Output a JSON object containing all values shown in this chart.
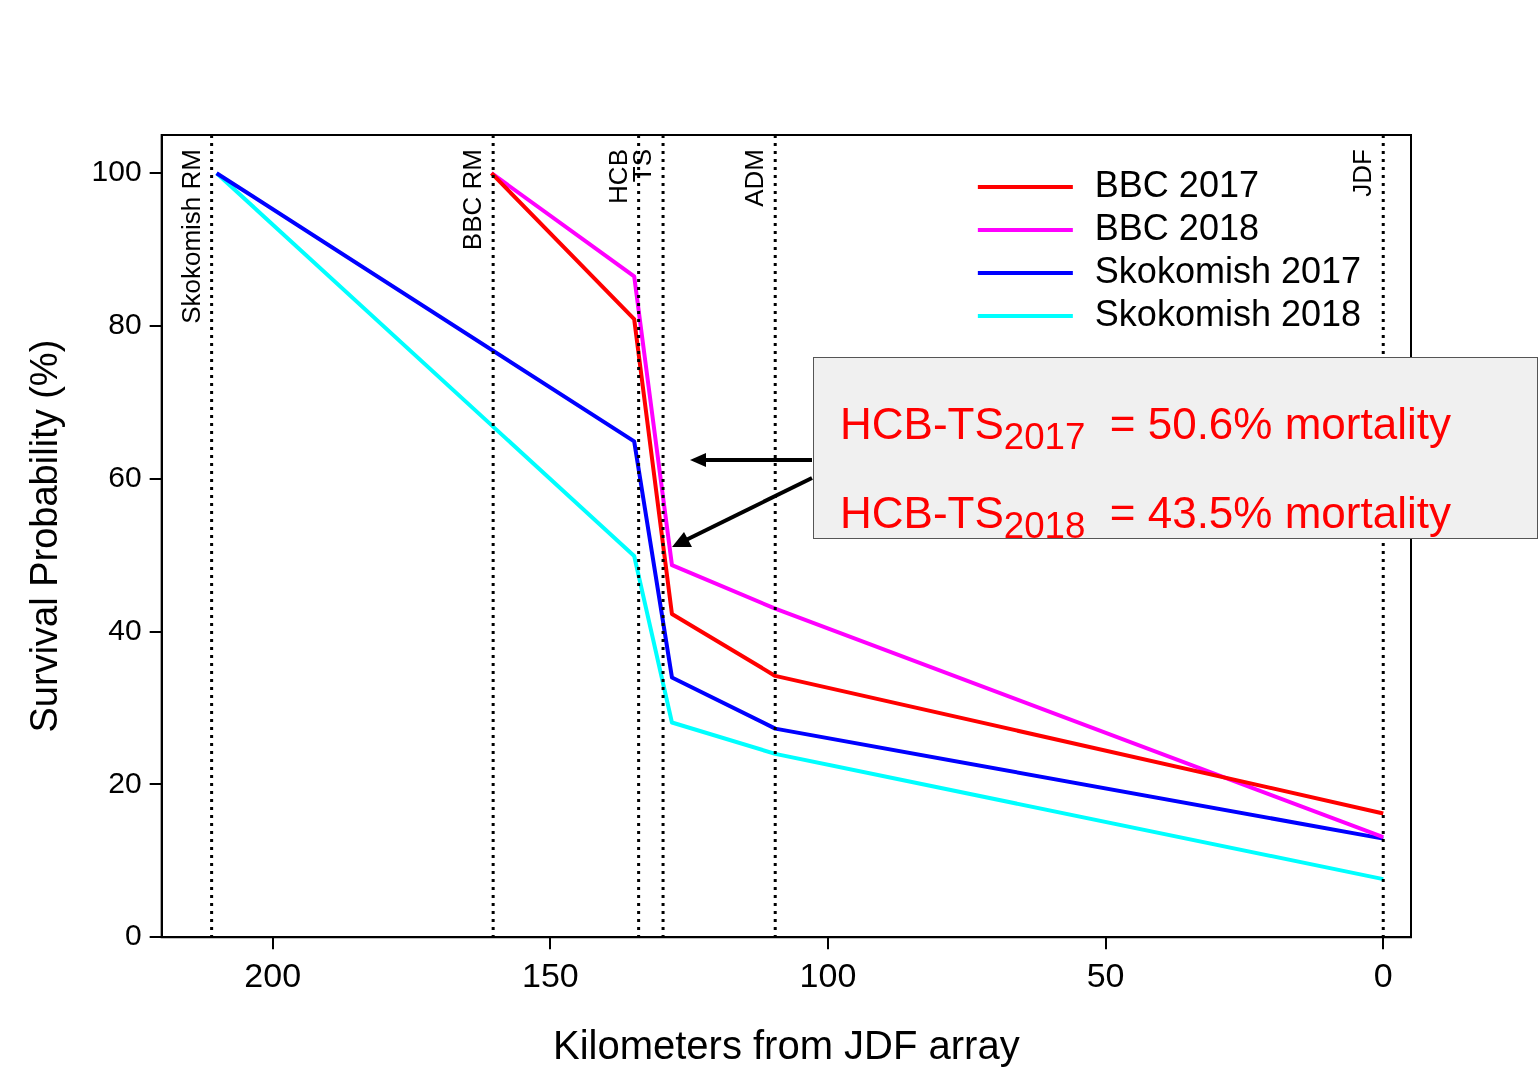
{
  "chart_data": {
    "type": "line",
    "xlabel": "Kilometers from JDF array",
    "ylabel": "Survival Probability (%)",
    "xlim": [
      220,
      -5
    ],
    "xticks": [
      200,
      150,
      100,
      50,
      0
    ],
    "ylim": [
      0,
      105
    ],
    "yticks": [
      0,
      20,
      40,
      60,
      80,
      100
    ],
    "grid": false,
    "legend": "top right",
    "marker": "none",
    "line_style": "solid",
    "series": [
      {
        "name": "BBC 2017",
        "color": "#ff0000",
        "x": [
          160.6,
          134.9,
          128.1,
          109.5,
          0
        ],
        "values": [
          100,
          80.9,
          42.3,
          34.2,
          16.2
        ]
      },
      {
        "name": "BBC 2018",
        "color": "#ff00ff",
        "x": [
          160.6,
          134.9,
          128.1,
          109.5,
          0
        ],
        "values": [
          100,
          86.5,
          48.7,
          43,
          13.1
        ]
      },
      {
        "name": "Skokomish 2017",
        "color": "#0000ff",
        "x": [
          210.1,
          134.9,
          128.1,
          109.5,
          0
        ],
        "values": [
          100,
          64.9,
          34,
          27.3,
          12.9
        ]
      },
      {
        "name": "Skokomish 2018",
        "color": "#00ffff",
        "x": [
          210.1,
          134.9,
          128.1,
          109.5,
          0
        ],
        "values": [
          100,
          49.9,
          28.1,
          24,
          7.6
        ]
      }
    ],
    "ref_lines": [
      {
        "axis": "x",
        "value": 211,
        "label": "Skokomish RM",
        "color": "#000000",
        "line_style": "dotted"
      },
      {
        "axis": "x",
        "value": 160.3,
        "label": "BBC RM",
        "color": "#000000",
        "line_style": "dotted"
      },
      {
        "axis": "x",
        "value": 134.1,
        "label": "HCB",
        "color": "#000000",
        "line_style": "dotted"
      },
      {
        "axis": "x",
        "value": 129.7,
        "label": "TS",
        "color": "#000000",
        "line_style": "dotted"
      },
      {
        "axis": "x",
        "value": 109.5,
        "label": "ADM",
        "color": "#000000",
        "line_style": "dotted"
      },
      {
        "axis": "x",
        "value": 0,
        "label": "JDF",
        "color": "#000000",
        "line_style": "dotted"
      }
    ],
    "annotations": [
      "HCB-TS$_{2017}$  = 50.6% mortality",
      "HCB-TS$_{2018}$  = 43.5% mortality"
    ]
  }
}
